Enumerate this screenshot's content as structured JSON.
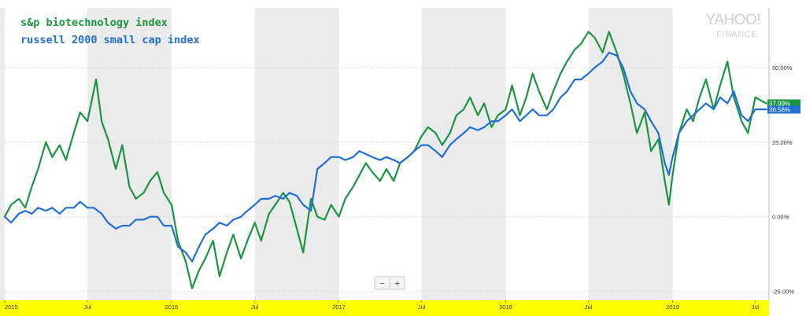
{
  "logo": {
    "main": "YAHOO!",
    "sub": "FINANCE"
  },
  "zoom": {
    "minus": "−",
    "plus": "+"
  },
  "chart_data": {
    "type": "line",
    "y_unit": "percent change",
    "ylim": [
      -28,
      70
    ],
    "yticks": [
      -25,
      0,
      25,
      50
    ],
    "ytick_labels": [
      "-25.00%",
      "0.00%",
      "25.00%",
      "50.00%"
    ],
    "x_range": [
      "2015-01-01",
      "2019-07-31"
    ],
    "x_ticks": [
      {
        "label": "2015",
        "date": "2015-01-01"
      },
      {
        "label": "Jul",
        "date": "2015-07-01"
      },
      {
        "label": "2016",
        "date": "2016-01-01"
      },
      {
        "label": "Jul",
        "date": "2016-07-01"
      },
      {
        "label": "2017",
        "date": "2017-01-01"
      },
      {
        "label": "Jul",
        "date": "2017-07-01"
      },
      {
        "label": "2018",
        "date": "2018-01-01"
      },
      {
        "label": "Jul",
        "date": "2018-07-01"
      },
      {
        "label": "2019",
        "date": "2019-01-01"
      },
      {
        "label": "Jul",
        "date": "2019-07-01"
      }
    ],
    "shaded_bands": [
      [
        "2015-07-01",
        "2016-01-01"
      ],
      [
        "2016-07-01",
        "2017-01-01"
      ],
      [
        "2017-07-01",
        "2018-01-01"
      ],
      [
        "2018-07-01",
        "2019-01-01"
      ]
    ],
    "x_axis_band_color": "#ffff00",
    "grid": true,
    "legend_position": "top-left",
    "series": [
      {
        "name": "s&p biotechnology index",
        "color": "#1a9641",
        "last_label": "37.99%",
        "points": [
          [
            "2015-01-01",
            0
          ],
          [
            "2015-01-15",
            4
          ],
          [
            "2015-02-01",
            6
          ],
          [
            "2015-02-15",
            3
          ],
          [
            "2015-03-01",
            10
          ],
          [
            "2015-03-15",
            16
          ],
          [
            "2015-04-01",
            25
          ],
          [
            "2015-04-15",
            20
          ],
          [
            "2015-05-01",
            24
          ],
          [
            "2015-05-15",
            19
          ],
          [
            "2015-06-01",
            28
          ],
          [
            "2015-06-15",
            35
          ],
          [
            "2015-07-01",
            32
          ],
          [
            "2015-07-20",
            46
          ],
          [
            "2015-08-01",
            32
          ],
          [
            "2015-08-15",
            26
          ],
          [
            "2015-09-01",
            16
          ],
          [
            "2015-09-15",
            24
          ],
          [
            "2015-10-01",
            10
          ],
          [
            "2015-10-15",
            6
          ],
          [
            "2015-11-01",
            8
          ],
          [
            "2015-11-15",
            12
          ],
          [
            "2015-12-01",
            15
          ],
          [
            "2015-12-15",
            8
          ],
          [
            "2016-01-01",
            4
          ],
          [
            "2016-01-15",
            -8
          ],
          [
            "2016-02-01",
            -15
          ],
          [
            "2016-02-15",
            -24
          ],
          [
            "2016-03-01",
            -18
          ],
          [
            "2016-03-15",
            -14
          ],
          [
            "2016-04-01",
            -8
          ],
          [
            "2016-04-15",
            -20
          ],
          [
            "2016-05-01",
            -12
          ],
          [
            "2016-05-15",
            -6
          ],
          [
            "2016-06-01",
            -14
          ],
          [
            "2016-06-15",
            -8
          ],
          [
            "2016-07-01",
            -2
          ],
          [
            "2016-07-15",
            -8
          ],
          [
            "2016-08-01",
            1
          ],
          [
            "2016-08-15",
            4
          ],
          [
            "2016-09-01",
            8
          ],
          [
            "2016-09-15",
            5
          ],
          [
            "2016-10-01",
            -4
          ],
          [
            "2016-10-15",
            -12
          ],
          [
            "2016-11-01",
            6
          ],
          [
            "2016-11-15",
            0
          ],
          [
            "2016-12-01",
            -1
          ],
          [
            "2016-12-15",
            4
          ],
          [
            "2017-01-01",
            0
          ],
          [
            "2017-01-15",
            6
          ],
          [
            "2017-02-01",
            10
          ],
          [
            "2017-02-15",
            14
          ],
          [
            "2017-03-01",
            18
          ],
          [
            "2017-03-15",
            15
          ],
          [
            "2017-04-01",
            12
          ],
          [
            "2017-04-15",
            16
          ],
          [
            "2017-05-01",
            12
          ],
          [
            "2017-05-15",
            18
          ],
          [
            "2017-06-01",
            20
          ],
          [
            "2017-06-15",
            22
          ],
          [
            "2017-07-01",
            27
          ],
          [
            "2017-07-15",
            30
          ],
          [
            "2017-08-01",
            28
          ],
          [
            "2017-08-15",
            24
          ],
          [
            "2017-09-01",
            28
          ],
          [
            "2017-09-15",
            34
          ],
          [
            "2017-10-01",
            36
          ],
          [
            "2017-10-15",
            40
          ],
          [
            "2017-11-01",
            34
          ],
          [
            "2017-11-15",
            38
          ],
          [
            "2017-12-01",
            30
          ],
          [
            "2017-12-15",
            34
          ],
          [
            "2018-01-01",
            36
          ],
          [
            "2018-01-15",
            44
          ],
          [
            "2018-02-01",
            34
          ],
          [
            "2018-02-15",
            40
          ],
          [
            "2018-03-01",
            48
          ],
          [
            "2018-03-15",
            42
          ],
          [
            "2018-04-01",
            36
          ],
          [
            "2018-04-15",
            42
          ],
          [
            "2018-05-01",
            48
          ],
          [
            "2018-05-15",
            52
          ],
          [
            "2018-06-01",
            56
          ],
          [
            "2018-06-15",
            58
          ],
          [
            "2018-07-01",
            62
          ],
          [
            "2018-07-15",
            60
          ],
          [
            "2018-08-01",
            55
          ],
          [
            "2018-08-15",
            62
          ],
          [
            "2018-09-01",
            55
          ],
          [
            "2018-09-15",
            48
          ],
          [
            "2018-10-01",
            38
          ],
          [
            "2018-10-15",
            28
          ],
          [
            "2018-11-01",
            35
          ],
          [
            "2018-11-15",
            22
          ],
          [
            "2018-12-01",
            26
          ],
          [
            "2018-12-15",
            12
          ],
          [
            "2018-12-24",
            4
          ],
          [
            "2019-01-01",
            14
          ],
          [
            "2019-01-15",
            28
          ],
          [
            "2019-02-01",
            36
          ],
          [
            "2019-02-15",
            32
          ],
          [
            "2019-03-01",
            40
          ],
          [
            "2019-03-15",
            46
          ],
          [
            "2019-04-01",
            36
          ],
          [
            "2019-04-15",
            44
          ],
          [
            "2019-05-01",
            52
          ],
          [
            "2019-05-15",
            40
          ],
          [
            "2019-06-01",
            32
          ],
          [
            "2019-06-15",
            28
          ],
          [
            "2019-07-01",
            40
          ],
          [
            "2019-07-25",
            38
          ]
        ]
      },
      {
        "name": "russell 2000 small cap index",
        "color": "#1f6fd6",
        "last_label": "36.56%",
        "points": [
          [
            "2015-01-01",
            0
          ],
          [
            "2015-01-15",
            -2
          ],
          [
            "2015-02-01",
            1
          ],
          [
            "2015-02-15",
            2
          ],
          [
            "2015-03-01",
            1
          ],
          [
            "2015-03-15",
            3
          ],
          [
            "2015-04-01",
            2
          ],
          [
            "2015-04-15",
            3
          ],
          [
            "2015-05-01",
            1
          ],
          [
            "2015-05-15",
            3
          ],
          [
            "2015-06-01",
            3
          ],
          [
            "2015-06-15",
            5
          ],
          [
            "2015-07-01",
            3
          ],
          [
            "2015-07-15",
            3
          ],
          [
            "2015-08-01",
            1
          ],
          [
            "2015-08-15",
            -2
          ],
          [
            "2015-09-01",
            -4
          ],
          [
            "2015-09-15",
            -3
          ],
          [
            "2015-10-01",
            -3
          ],
          [
            "2015-10-15",
            -1
          ],
          [
            "2015-11-01",
            -1
          ],
          [
            "2015-11-15",
            0
          ],
          [
            "2015-12-01",
            0
          ],
          [
            "2015-12-15",
            -3
          ],
          [
            "2016-01-01",
            -3
          ],
          [
            "2016-01-15",
            -10
          ],
          [
            "2016-02-01",
            -12
          ],
          [
            "2016-02-15",
            -15
          ],
          [
            "2016-03-01",
            -10
          ],
          [
            "2016-03-15",
            -6
          ],
          [
            "2016-04-01",
            -4
          ],
          [
            "2016-04-15",
            -2
          ],
          [
            "2016-05-01",
            -3
          ],
          [
            "2016-05-15",
            -1
          ],
          [
            "2016-06-01",
            0
          ],
          [
            "2016-06-15",
            2
          ],
          [
            "2016-07-01",
            4
          ],
          [
            "2016-07-15",
            6
          ],
          [
            "2016-08-01",
            6
          ],
          [
            "2016-08-15",
            7
          ],
          [
            "2016-09-01",
            6
          ],
          [
            "2016-09-15",
            8
          ],
          [
            "2016-10-01",
            7
          ],
          [
            "2016-10-15",
            4
          ],
          [
            "2016-11-01",
            2
          ],
          [
            "2016-11-15",
            16
          ],
          [
            "2016-12-01",
            18
          ],
          [
            "2016-12-15",
            20
          ],
          [
            "2017-01-01",
            20
          ],
          [
            "2017-01-15",
            19
          ],
          [
            "2017-02-01",
            20
          ],
          [
            "2017-02-15",
            22
          ],
          [
            "2017-03-01",
            21
          ],
          [
            "2017-03-15",
            20
          ],
          [
            "2017-04-01",
            19
          ],
          [
            "2017-04-15",
            20
          ],
          [
            "2017-05-01",
            19
          ],
          [
            "2017-05-15",
            18
          ],
          [
            "2017-06-01",
            20
          ],
          [
            "2017-06-15",
            22
          ],
          [
            "2017-07-01",
            24
          ],
          [
            "2017-07-15",
            24
          ],
          [
            "2017-08-01",
            22
          ],
          [
            "2017-08-15",
            20
          ],
          [
            "2017-09-01",
            24
          ],
          [
            "2017-09-15",
            26
          ],
          [
            "2017-10-01",
            28
          ],
          [
            "2017-10-15",
            30
          ],
          [
            "2017-11-01",
            29
          ],
          [
            "2017-11-15",
            30
          ],
          [
            "2017-12-01",
            32
          ],
          [
            "2017-12-15",
            32
          ],
          [
            "2018-01-01",
            34
          ],
          [
            "2018-01-15",
            36
          ],
          [
            "2018-02-01",
            32
          ],
          [
            "2018-02-15",
            34
          ],
          [
            "2018-03-01",
            36
          ],
          [
            "2018-03-15",
            34
          ],
          [
            "2018-04-01",
            34
          ],
          [
            "2018-04-15",
            36
          ],
          [
            "2018-05-01",
            40
          ],
          [
            "2018-05-15",
            42
          ],
          [
            "2018-06-01",
            46
          ],
          [
            "2018-06-15",
            46
          ],
          [
            "2018-07-01",
            48
          ],
          [
            "2018-07-15",
            50
          ],
          [
            "2018-08-01",
            52
          ],
          [
            "2018-08-15",
            55
          ],
          [
            "2018-09-01",
            54
          ],
          [
            "2018-09-15",
            50
          ],
          [
            "2018-10-01",
            42
          ],
          [
            "2018-10-15",
            38
          ],
          [
            "2018-11-01",
            36
          ],
          [
            "2018-11-15",
            32
          ],
          [
            "2018-12-01",
            28
          ],
          [
            "2018-12-15",
            18
          ],
          [
            "2018-12-24",
            14
          ],
          [
            "2019-01-01",
            20
          ],
          [
            "2019-01-15",
            28
          ],
          [
            "2019-02-01",
            32
          ],
          [
            "2019-02-15",
            34
          ],
          [
            "2019-03-01",
            36
          ],
          [
            "2019-03-15",
            38
          ],
          [
            "2019-04-01",
            36
          ],
          [
            "2019-04-15",
            40
          ],
          [
            "2019-05-01",
            38
          ],
          [
            "2019-05-15",
            42
          ],
          [
            "2019-06-01",
            34
          ],
          [
            "2019-06-15",
            32
          ],
          [
            "2019-07-01",
            36
          ],
          [
            "2019-07-25",
            36
          ]
        ]
      }
    ]
  }
}
